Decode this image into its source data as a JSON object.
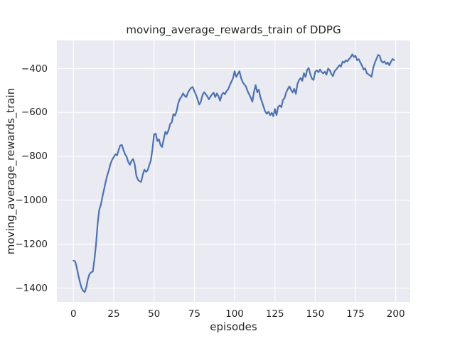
{
  "page": {
    "background": "#ffffff"
  },
  "chart_data": {
    "type": "line",
    "title": "moving_average_rewards_train of DDPG",
    "xlabel": "episodes",
    "ylabel": "moving_average_rewards_train",
    "x_ticks": [
      0,
      25,
      50,
      75,
      100,
      125,
      150,
      175,
      200
    ],
    "x_tick_labels": [
      "0",
      "25",
      "50",
      "75",
      "100",
      "125",
      "150",
      "175",
      "200"
    ],
    "y_ticks": [
      -400,
      -600,
      -800,
      -1000,
      -1200,
      -1400
    ],
    "y_tick_labels": [
      "−400",
      "−600",
      "−800",
      "−1000",
      "−1200",
      "−1400"
    ],
    "xlim": [
      -10.3,
      208.95
    ],
    "ylim": [
      -1463,
      -272
    ],
    "grid": true,
    "legend": "none",
    "style": {
      "axes_background": "#eaeaf2",
      "grid_color": "#ffffff",
      "line_color": "#4c72b0",
      "text_color": "#262626",
      "line_width": 2.2
    },
    "series": [
      {
        "name": "moving_average_rewards_train",
        "x_start": 0,
        "x_step": 1,
        "values": [
          -1275,
          -1278,
          -1305,
          -1340,
          -1372,
          -1398,
          -1412,
          -1418,
          -1395,
          -1358,
          -1335,
          -1328,
          -1324,
          -1270,
          -1200,
          -1105,
          -1043,
          -1020,
          -982,
          -950,
          -915,
          -885,
          -862,
          -833,
          -815,
          -803,
          -790,
          -796,
          -772,
          -750,
          -748,
          -770,
          -790,
          -802,
          -825,
          -838,
          -820,
          -812,
          -836,
          -888,
          -906,
          -913,
          -916,
          -884,
          -860,
          -870,
          -864,
          -840,
          -818,
          -768,
          -700,
          -696,
          -730,
          -722,
          -748,
          -757,
          -722,
          -688,
          -698,
          -680,
          -652,
          -645,
          -607,
          -614,
          -594,
          -558,
          -538,
          -528,
          -513,
          -524,
          -530,
          -510,
          -497,
          -488,
          -484,
          -503,
          -519,
          -540,
          -564,
          -552,
          -522,
          -508,
          -516,
          -526,
          -540,
          -528,
          -517,
          -510,
          -530,
          -513,
          -527,
          -546,
          -519,
          -510,
          -517,
          -502,
          -494,
          -476,
          -460,
          -444,
          -412,
          -438,
          -424,
          -412,
          -443,
          -462,
          -472,
          -481,
          -502,
          -517,
          -532,
          -551,
          -508,
          -475,
          -508,
          -496,
          -531,
          -552,
          -574,
          -596,
          -606,
          -596,
          -612,
          -601,
          -617,
          -584,
          -612,
          -574,
          -568,
          -576,
          -543,
          -534,
          -508,
          -494,
          -481,
          -497,
          -509,
          -492,
          -515,
          -470,
          -452,
          -443,
          -456,
          -421,
          -438,
          -406,
          -398,
          -427,
          -446,
          -452,
          -414,
          -408,
          -417,
          -404,
          -416,
          -422,
          -414,
          -428,
          -400,
          -407,
          -424,
          -434,
          -412,
          -404,
          -395,
          -384,
          -391,
          -368,
          -373,
          -362,
          -367,
          -356,
          -349,
          -335,
          -347,
          -341,
          -362,
          -357,
          -372,
          -386,
          -404,
          -399,
          -421,
          -426,
          -432,
          -437,
          -396,
          -374,
          -356,
          -338,
          -341,
          -366,
          -373,
          -367,
          -379,
          -372,
          -385,
          -369,
          -356,
          -362
        ]
      }
    ]
  }
}
